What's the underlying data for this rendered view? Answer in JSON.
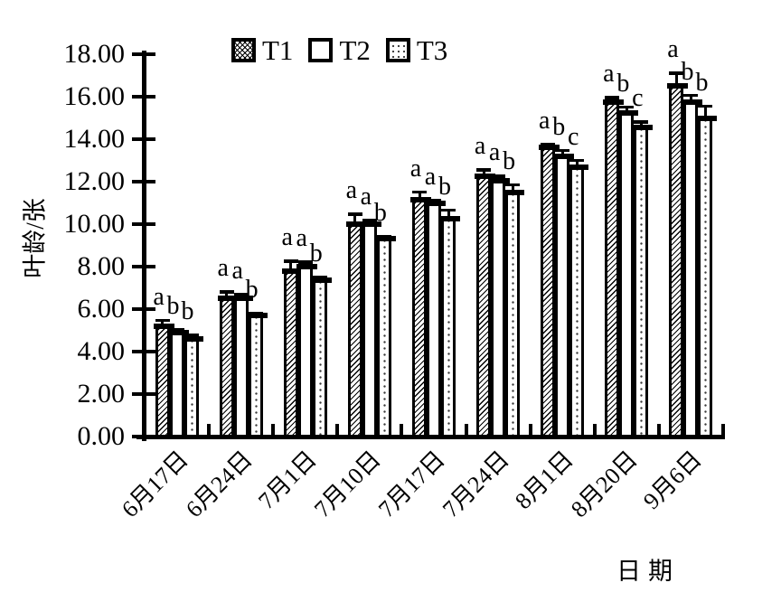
{
  "chart_data": {
    "type": "bar",
    "title": "",
    "ylabel": "叶龄/张",
    "xlabel": "日期",
    "ylim": [
      0,
      18
    ],
    "ytick_step": 2,
    "ytick_labels": [
      "0.00",
      "2.00",
      "4.00",
      "6.00",
      "8.00",
      "10.00",
      "12.00",
      "14.00",
      "16.00",
      "18.00"
    ],
    "categories": [
      "6月17日",
      "6月24日",
      "7月1日",
      "7月10日",
      "7月17日",
      "7月24日",
      "8月1日",
      "8月20日",
      "9月6日"
    ],
    "series": [
      {
        "name": "T1",
        "pattern": "diagonal-hatch",
        "values": [
          5.2,
          6.5,
          7.8,
          10.0,
          11.15,
          12.25,
          13.6,
          15.75,
          16.5
        ],
        "errors": [
          0.25,
          0.3,
          0.45,
          0.45,
          0.35,
          0.3,
          0.15,
          0.2,
          0.6
        ],
        "sig_letters": [
          "a",
          "a",
          "a",
          "a",
          "a",
          "a",
          "a",
          "a",
          "a"
        ]
      },
      {
        "name": "T2",
        "pattern": "plain",
        "values": [
          4.9,
          6.5,
          8.0,
          10.0,
          11.0,
          12.05,
          13.2,
          15.25,
          15.75
        ],
        "errors": [
          0.12,
          0.18,
          0.2,
          0.15,
          0.12,
          0.2,
          0.25,
          0.25,
          0.3
        ],
        "sig_letters": [
          "b",
          "a",
          "a",
          "a",
          "a",
          "a",
          "b",
          "b",
          "b"
        ]
      },
      {
        "name": "T3",
        "pattern": "dots",
        "values": [
          4.6,
          5.7,
          7.35,
          9.3,
          10.25,
          11.5,
          12.7,
          14.55,
          15.0
        ],
        "errors": [
          0.15,
          0.1,
          0.15,
          0.1,
          0.4,
          0.35,
          0.3,
          0.25,
          0.55
        ],
        "sig_letters": [
          "b",
          "b",
          "b",
          "b",
          "b",
          "b",
          "c",
          "c",
          "b"
        ]
      }
    ],
    "legend": {
      "position": "top-center",
      "entries": [
        "T1",
        "T2",
        "T3"
      ]
    },
    "grid": false,
    "error_bars": true
  },
  "colors": {
    "foreground": "#000000",
    "background": "#ffffff"
  }
}
